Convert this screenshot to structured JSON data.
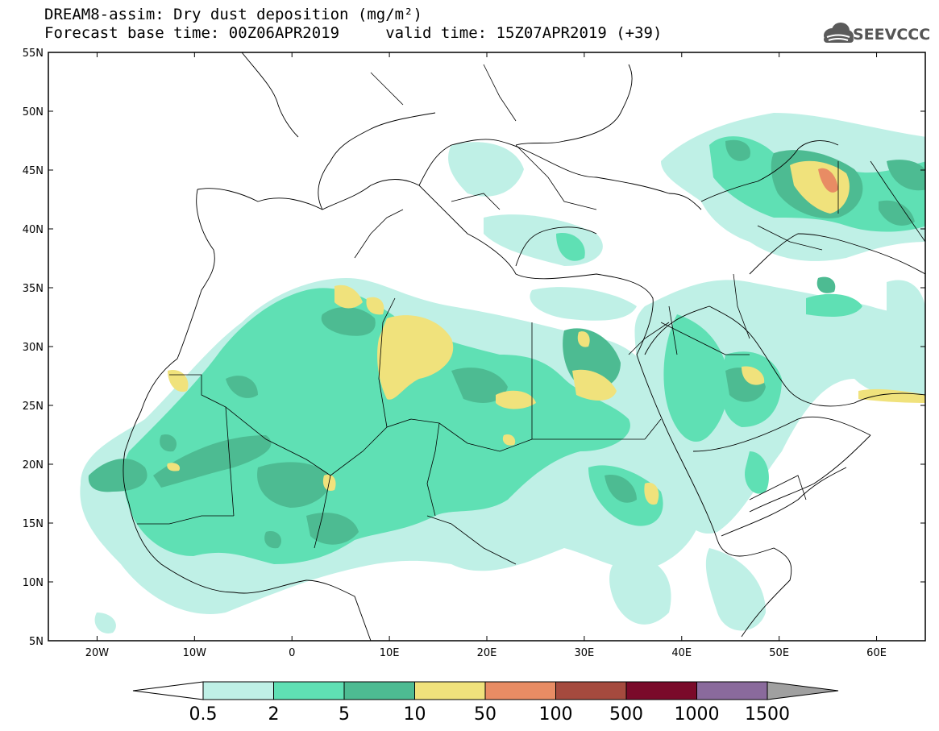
{
  "title": {
    "line1": "DREAM8-assim: Dry dust deposition (mg/m²)",
    "line2": "Forecast base time: 00Z06APR2019     valid time: 15Z07APR2019 (+39)"
  },
  "logo": {
    "text": "SEEVCCC",
    "icon": "cloud-icon",
    "color": "#5a5a5a"
  },
  "map": {
    "lat_labels": [
      "55N",
      "50N",
      "45N",
      "40N",
      "35N",
      "30N",
      "25N",
      "20N",
      "15N",
      "10N",
      "5N"
    ],
    "lon_labels": [
      "20W",
      "10W",
      "0",
      "10E",
      "20E",
      "30E",
      "40E",
      "50E",
      "60E"
    ]
  },
  "colorbar": {
    "labels": [
      "0.5",
      "2",
      "5",
      "10",
      "50",
      "100",
      "500",
      "1000",
      "1500"
    ],
    "colors": [
      "#bff0e6",
      "#5fe0b4",
      "#4dbb92",
      "#f0e27c",
      "#e88c64",
      "#a54a3e",
      "#7a0a2a",
      "#8a6a9c"
    ],
    "under_color": "#ffffff",
    "over_color": "#a0a0a0"
  },
  "colors": {
    "land": "#ffffff",
    "border": "#000000"
  }
}
